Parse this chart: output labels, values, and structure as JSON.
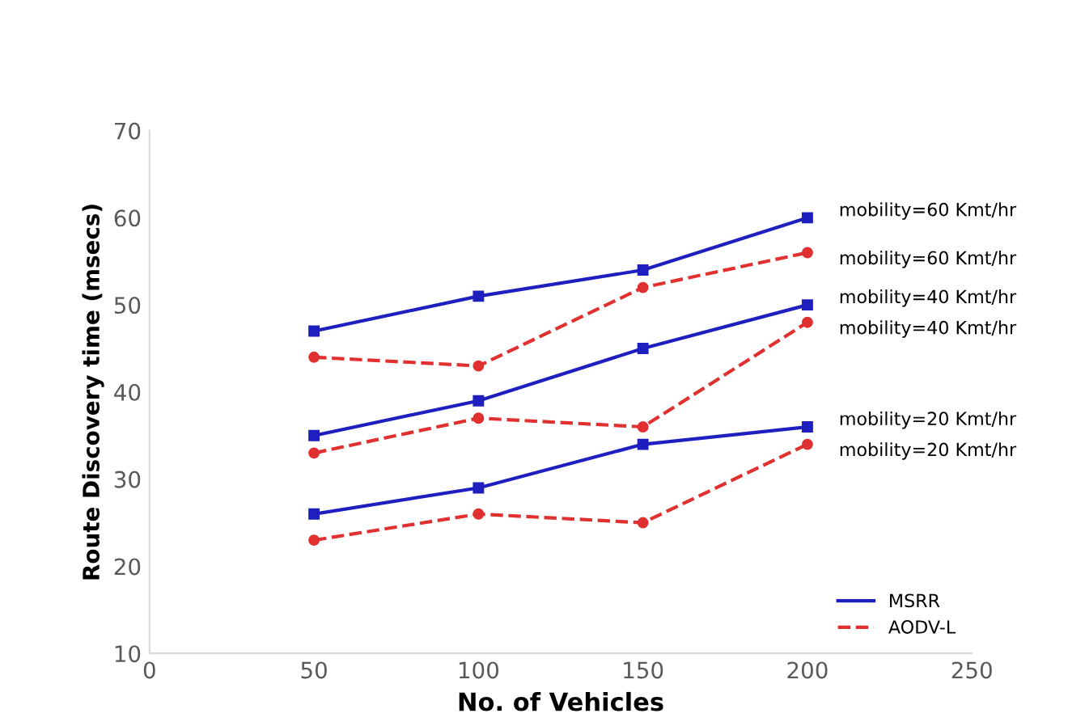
{
  "chart_data": {
    "type": "line",
    "xlabel": "No. of Vehicles",
    "ylabel": "Route Discovery time (msecs)",
    "xlim": [
      0,
      250
    ],
    "xticks": [
      0,
      50,
      100,
      150,
      200,
      250
    ],
    "ylim": [
      10,
      70
    ],
    "yticks": [
      10,
      20,
      30,
      40,
      50,
      60,
      70
    ],
    "grid": false,
    "legend": "lower right",
    "series": [
      {
        "name": "MSRR",
        "color": "#1f1fbf",
        "marker": "square",
        "line_style": "solid",
        "x": [
          50,
          100,
          150,
          200
        ],
        "values": [
          47,
          51,
          54,
          60
        ]
      },
      {
        "name": "AODV-L",
        "color": "#e03030",
        "marker": "circle",
        "line_style": "dashed",
        "x": [
          50,
          100,
          150,
          200
        ],
        "values": [
          44,
          43,
          52,
          56
        ]
      },
      {
        "color": "#1f1fbf",
        "marker": "square",
        "line_style": "solid",
        "x": [
          50,
          100,
          150,
          200
        ],
        "values": [
          35,
          39,
          45,
          50
        ]
      },
      {
        "color": "#e03030",
        "marker": "circle",
        "line_style": "dashed",
        "x": [
          50,
          100,
          150,
          200
        ],
        "values": [
          33,
          37,
          36,
          48
        ]
      },
      {
        "color": "#1f1fbf",
        "marker": "square",
        "line_style": "solid",
        "x": [
          50,
          100,
          150,
          200
        ],
        "values": [
          26,
          29,
          34,
          36
        ]
      },
      {
        "color": "#e03030",
        "marker": "circle",
        "line_style": "dashed",
        "x": [
          50,
          100,
          150,
          200
        ],
        "values": [
          23,
          26,
          25,
          34
        ]
      }
    ],
    "annotations": [
      "mobility=60 Kmt/hr",
      "mobility=60 Kmt/hr",
      "mobility=40 Kmt/hr",
      "mobility=40 Kmt/hr",
      "mobility=20 Kmt/hr",
      "mobility=20 Kmt/hr"
    ]
  }
}
